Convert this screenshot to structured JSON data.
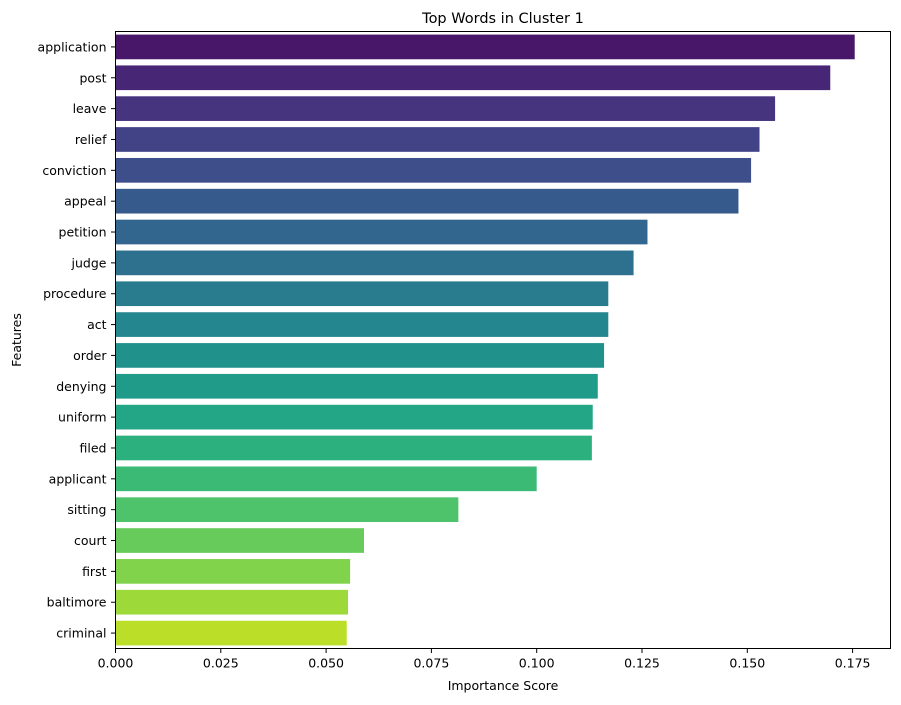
{
  "chart_data": {
    "type": "bar",
    "orientation": "horizontal",
    "title": "Top Words in Cluster 1",
    "xlabel": "Importance Score",
    "ylabel": "Features",
    "xlim": [
      0,
      0.184
    ],
    "xticks": [
      "0.000",
      "0.025",
      "0.050",
      "0.075",
      "0.100",
      "0.125",
      "0.150",
      "0.175"
    ],
    "grid": false,
    "categories": [
      "application",
      "post",
      "leave",
      "relief",
      "conviction",
      "appeal",
      "petition",
      "judge",
      "procedure",
      "act",
      "order",
      "denying",
      "uniform",
      "filed",
      "applicant",
      "sitting",
      "court",
      "first",
      "baltimore",
      "criminal"
    ],
    "values": [
      0.1755,
      0.1697,
      0.1566,
      0.1529,
      0.1509,
      0.1479,
      0.1263,
      0.123,
      0.117,
      0.117,
      0.116,
      0.1145,
      0.1133,
      0.1131,
      0.1,
      0.0814,
      0.059,
      0.0557,
      0.0552,
      0.0549
    ],
    "colors": [
      "#440154",
      "#481a6c",
      "#472f7d",
      "#414487",
      "#39568c",
      "#31688e",
      "#2a788e",
      "#23888e",
      "#1f988b",
      "#22a884",
      "#35b779",
      "#54c568",
      "#7ad151",
      "#a5db36",
      "#d2e21b",
      "#fde725"
    ]
  }
}
